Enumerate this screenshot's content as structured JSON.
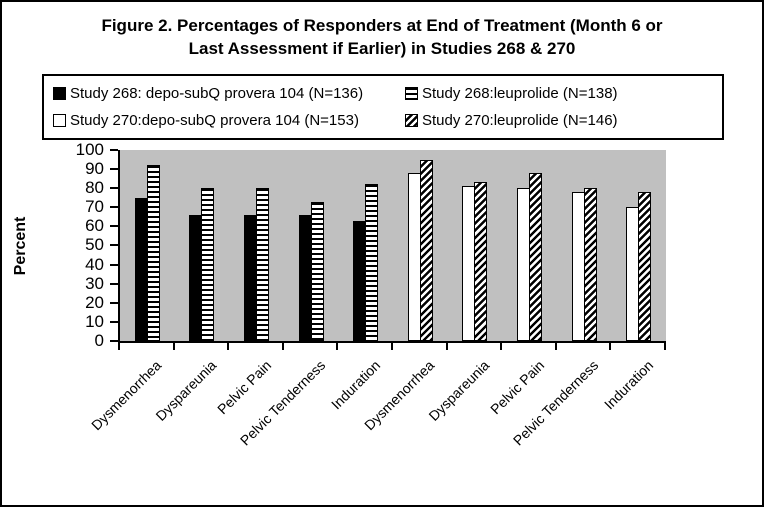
{
  "figure": {
    "title_line1": "Figure 2.  Percentages of Responders at End of Treatment (Month 6 or",
    "title_line2": "Last Assessment if Earlier) in Studies 268 & 270"
  },
  "chart_data": {
    "type": "bar",
    "title": "Figure 2. Percentages of Responders at End of Treatment (Month 6 or Last Assessment if Earlier) in Studies 268 & 270",
    "ylabel": "Percent",
    "ylim": [
      0,
      100
    ],
    "ytick_step": 10,
    "yticks": [
      100,
      90,
      80,
      70,
      60,
      50,
      40,
      30,
      20,
      10,
      0
    ],
    "grid": false,
    "legend_position": "top",
    "plot_background": "#c0c0c0",
    "bar_outline": "#000000",
    "series": [
      {
        "name": "Study 268: depo-subQ provera 104 (N=136)",
        "pattern": "solid-black"
      },
      {
        "name": "Study 268:leuprolide (N=138)",
        "pattern": "h-stripes"
      },
      {
        "name": "Study 270:depo-subQ provera 104 (N=153)",
        "pattern": "plain-white"
      },
      {
        "name": "Study 270:leuprolide (N=146)",
        "pattern": "diag-stripes"
      }
    ],
    "groups": [
      {
        "category": "Dysmenorrhea",
        "bars": [
          {
            "series": 0,
            "value": 75
          },
          {
            "series": 1,
            "value": 92
          }
        ]
      },
      {
        "category": "Dyspareunia",
        "bars": [
          {
            "series": 0,
            "value": 66
          },
          {
            "series": 1,
            "value": 80
          }
        ]
      },
      {
        "category": "Pelvic Pain",
        "bars": [
          {
            "series": 0,
            "value": 66
          },
          {
            "series": 1,
            "value": 80
          }
        ]
      },
      {
        "category": "Pelvic Tenderness",
        "bars": [
          {
            "series": 0,
            "value": 66
          },
          {
            "series": 1,
            "value": 73
          }
        ]
      },
      {
        "category": "Induration",
        "bars": [
          {
            "series": 0,
            "value": 63
          },
          {
            "series": 1,
            "value": 82
          }
        ]
      },
      {
        "category": "Dysmenorrhea",
        "bars": [
          {
            "series": 2,
            "value": 88
          },
          {
            "series": 3,
            "value": 95
          }
        ]
      },
      {
        "category": "Dyspareunia",
        "bars": [
          {
            "series": 2,
            "value": 81
          },
          {
            "series": 3,
            "value": 83
          }
        ]
      },
      {
        "category": "Pelvic Pain",
        "bars": [
          {
            "series": 2,
            "value": 80
          },
          {
            "series": 3,
            "value": 88
          }
        ]
      },
      {
        "category": "Pelvic Tenderness",
        "bars": [
          {
            "series": 2,
            "value": 78
          },
          {
            "series": 3,
            "value": 80
          }
        ]
      },
      {
        "category": "Induration",
        "bars": [
          {
            "series": 2,
            "value": 70
          },
          {
            "series": 3,
            "value": 78
          }
        ]
      }
    ]
  }
}
